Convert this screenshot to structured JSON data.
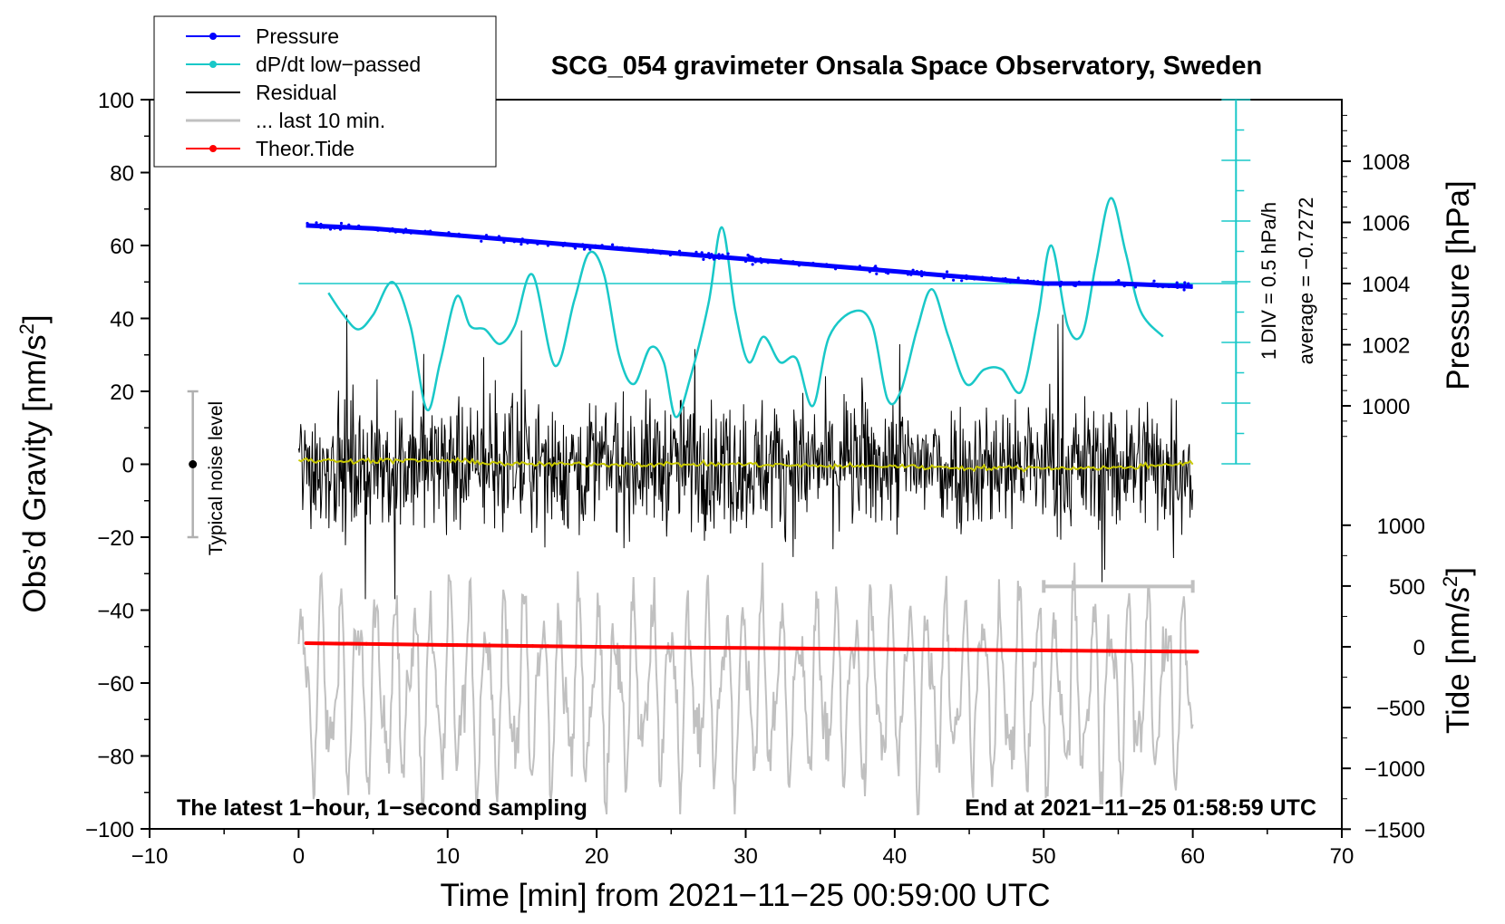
{
  "chart_data": {
    "type": "line",
    "title": "SCG_054 gravimeter Onsala Space Observatory, Sweden",
    "xlabel": "Time [min] from 2021−11−25 00:59:00 UTC",
    "xlim": [
      -10,
      70
    ],
    "xticks": [
      -10,
      0,
      10,
      20,
      30,
      40,
      50,
      60,
      70
    ],
    "xtick_labels": [
      "−10",
      "0",
      "10",
      "20",
      "30",
      "40",
      "50",
      "60",
      "70"
    ],
    "ylabel_left": "Obs’d Gravity [nm/s",
    "ylabel_left_sup": "2",
    "ylabel_left_end": "]",
    "ylim": [
      -100,
      100
    ],
    "yticks": [
      -100,
      -80,
      -60,
      -40,
      -20,
      0,
      20,
      40,
      60,
      80,
      100
    ],
    "ytick_labels": [
      "−100",
      "−80",
      "−60",
      "−40",
      "−20",
      "0",
      "20",
      "40",
      "60",
      "80",
      "100"
    ],
    "pressure_axis": {
      "label": "Pressure [hPa]",
      "ticks": [
        1000,
        1002,
        1004,
        1006,
        1008
      ],
      "tick_labels": [
        "1000",
        "1002",
        "1004",
        "1006",
        "1008"
      ]
    },
    "tide_axis": {
      "label": "Tide [nm/s",
      "label_sup": "2",
      "label_end": "]",
      "ticks": [
        -1500,
        -1000,
        -500,
        0,
        500,
        1000
      ],
      "tick_labels": [
        "−1500",
        "−1000",
        "−500",
        "0",
        "500",
        "1000"
      ]
    },
    "dpdt_scale": {
      "label": "1 DIV = 0.5 hPa/h",
      "average_label": "average = −0.7272"
    },
    "noise_level_label": "Typical noise level",
    "noise_level_range": [
      -20,
      20
    ],
    "last10_range": [
      50,
      60
    ],
    "footer_left": "The latest 1−hour, 1−second sampling",
    "footer_right": "End at 2021−11−25 01:58:59 UTC",
    "legend": [
      {
        "label": "Pressure",
        "color": "#0000ff",
        "marker": "dot"
      },
      {
        "label": "dP/dt low−passed",
        "color": "#19c8c8",
        "marker": "dot"
      },
      {
        "label": "Residual",
        "color": "#000000",
        "marker": "none"
      },
      {
        "label": "... last 10 min.",
        "color": "#c0c0c0",
        "marker": "none"
      },
      {
        "label": "Theor.Tide",
        "color": "#ff0000",
        "marker": "dot"
      }
    ],
    "series": [
      {
        "name": "Pressure",
        "axis": "pressure",
        "color": "#0000ff",
        "x": [
          0.5,
          5,
          10,
          15,
          20,
          25,
          30,
          35,
          40,
          45,
          50,
          55,
          60
        ],
        "values": [
          1005.9,
          1005.8,
          1005.6,
          1005.4,
          1005.2,
          1005.0,
          1004.8,
          1004.6,
          1004.4,
          1004.2,
          1004.0,
          1004.0,
          1003.9
        ]
      },
      {
        "name": "dP/dt low−passed",
        "axis": "gravity_display",
        "color": "#19c8c8",
        "x": [
          2,
          3,
          4,
          5,
          6.3,
          7.5,
          8.6,
          9.5,
          10.6,
          11.5,
          12.5,
          13.5,
          14.5,
          15.7,
          17.2,
          18.5,
          19.5,
          20.5,
          21.5,
          22.5,
          23.6,
          24.5,
          25.3,
          26.3,
          27.5,
          28.4,
          29.3,
          30.2,
          31.2,
          32.3,
          33.4,
          34.5,
          35.6,
          37.3,
          38.5,
          39.5,
          40.4,
          41.5,
          42.5,
          43.6,
          44.8,
          46,
          47.2,
          48.5,
          49.6,
          50.5,
          51.6,
          52.6,
          53.5,
          54.5,
          55.5,
          56.5,
          58
        ],
        "values": [
          47,
          41,
          37,
          41,
          50,
          38,
          15,
          28,
          46,
          38,
          37,
          33,
          38,
          52,
          27,
          45,
          58,
          52,
          30,
          22,
          32,
          28,
          13,
          24,
          44,
          65,
          42,
          28,
          35,
          28,
          29,
          16,
          35,
          42,
          38,
          18,
          20,
          37,
          48,
          35,
          22,
          26,
          26,
          20,
          40,
          60,
          38,
          36,
          55,
          73,
          58,
          42,
          35
        ]
      },
      {
        "name": "Residual",
        "axis": "gravity",
        "color": "#000000",
        "x_range": [
          0,
          60
        ],
        "typical_amplitude": 12,
        "peak_range": [
          -37,
          41
        ]
      },
      {
        "name": "Residual mean",
        "axis": "gravity",
        "color": "#c8c800",
        "x_range": [
          0,
          60
        ],
        "values_approx": [
          1,
          1,
          1,
          0,
          0,
          0,
          0,
          -0.5,
          -0.5,
          -1,
          -1,
          -1,
          0.5
        ]
      },
      {
        "name": "... last 10 min.",
        "axis": "gravity",
        "color": "#c0c0c0",
        "x_range": [
          0,
          60
        ],
        "center": -62,
        "range": [
          -96,
          -27
        ]
      },
      {
        "name": "Theor.Tide",
        "axis": "tide",
        "color": "#ff0000",
        "x": [
          0.5,
          10,
          20,
          30,
          40,
          50,
          60.3
        ],
        "values": [
          30,
          15,
          0,
          -10,
          -20,
          -30,
          -40
        ]
      }
    ]
  }
}
